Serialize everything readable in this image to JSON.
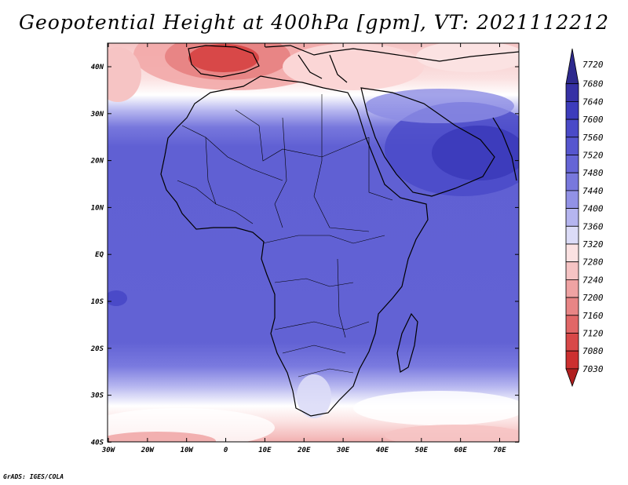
{
  "title": "Geopotential Height at 400hPa [gpm], VT: 2021112212",
  "footer": "GrADS: IGES/COLA",
  "map": {
    "lat_labels": [
      "40N",
      "30N",
      "20N",
      "10N",
      "EQ",
      "10S",
      "20S",
      "30S",
      "40S"
    ],
    "lon_labels": [
      "30W",
      "20W",
      "10W",
      "0",
      "10E",
      "20E",
      "30E",
      "40E",
      "50E",
      "60E",
      "70E"
    ]
  },
  "colorbar": {
    "labels": [
      "7720",
      "7680",
      "7640",
      "7600",
      "7560",
      "7520",
      "7480",
      "7440",
      "7400",
      "7360",
      "7320",
      "7280",
      "7240",
      "7200",
      "7160",
      "7120",
      "7080",
      "7030"
    ],
    "colors": [
      "#2e2a8e",
      "#3631a5",
      "#3d3cbc",
      "#4a4ac8",
      "#5656cf",
      "#6565d6",
      "#7878dd",
      "#9292e6",
      "#b5b5ef",
      "#dcdcf7",
      "#fbe2e2",
      "#f6c4c4",
      "#efa3a3",
      "#e88585",
      "#e16767",
      "#d84848",
      "#cc3030",
      "#b01f1f"
    ]
  }
}
